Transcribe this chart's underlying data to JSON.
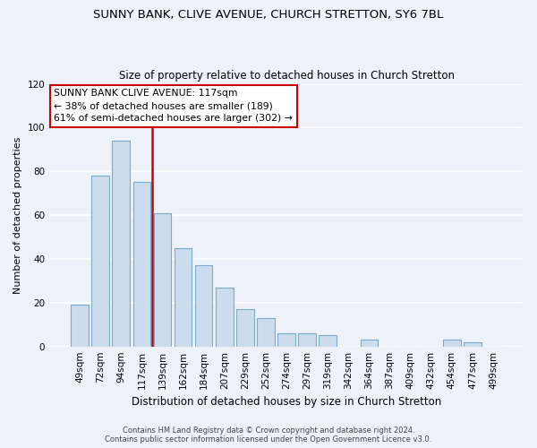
{
  "title": "SUNNY BANK, CLIVE AVENUE, CHURCH STRETTON, SY6 7BL",
  "subtitle": "Size of property relative to detached houses in Church Stretton",
  "xlabel": "Distribution of detached houses by size in Church Stretton",
  "ylabel": "Number of detached properties",
  "bar_labels": [
    "49sqm",
    "72sqm",
    "94sqm",
    "117sqm",
    "139sqm",
    "162sqm",
    "184sqm",
    "207sqm",
    "229sqm",
    "252sqm",
    "274sqm",
    "297sqm",
    "319sqm",
    "342sqm",
    "364sqm",
    "387sqm",
    "409sqm",
    "432sqm",
    "454sqm",
    "477sqm",
    "499sqm"
  ],
  "bar_values": [
    19,
    78,
    94,
    75,
    61,
    45,
    37,
    27,
    17,
    13,
    6,
    6,
    5,
    0,
    3,
    0,
    0,
    0,
    3,
    2,
    0
  ],
  "bar_color": "#ccdcec",
  "bar_edge_color": "#7aaac8",
  "highlight_index": 3,
  "vline_color": "#cc0000",
  "ylim": [
    0,
    120
  ],
  "yticks": [
    0,
    20,
    40,
    60,
    80,
    100,
    120
  ],
  "annotation_line1": "SUNNY BANK CLIVE AVENUE: 117sqm",
  "annotation_line2": "← 38% of detached houses are smaller (189)",
  "annotation_line3": "61% of semi-detached houses are larger (302) →",
  "annotation_box_edge": "#cc0000",
  "footer_line1": "Contains HM Land Registry data © Crown copyright and database right 2024.",
  "footer_line2": "Contains public sector information licensed under the Open Government Licence v3.0.",
  "background_color": "#edf2f8",
  "plot_bg_color": "#edf2f8",
  "grid_color": "#ffffff",
  "vline_x": 3.5
}
